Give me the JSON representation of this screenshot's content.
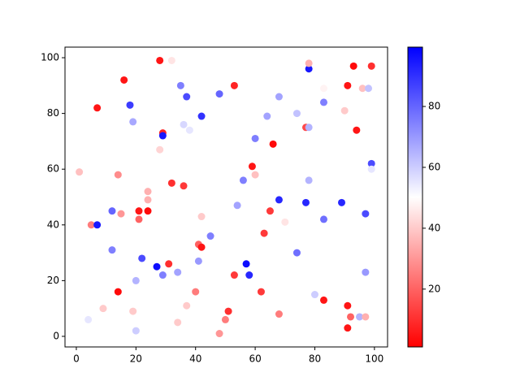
{
  "chart_data": {
    "type": "scatter",
    "colormap": "bwr",
    "x": [
      28,
      32,
      16,
      53,
      78,
      78,
      93,
      99,
      91,
      83,
      96,
      98,
      7,
      18,
      35,
      37,
      48,
      68,
      83,
      42,
      64,
      74,
      90,
      19,
      36,
      38,
      77,
      78,
      94,
      29,
      29,
      60,
      66,
      28,
      1,
      59,
      99,
      99,
      14,
      60,
      56,
      78,
      32,
      36,
      24,
      24,
      68,
      21,
      24,
      12,
      15,
      21,
      54,
      65,
      77,
      89,
      97,
      83,
      42,
      70,
      5,
      7,
      45,
      63,
      41,
      42,
      12,
      74,
      22,
      41,
      31,
      27,
      57,
      34,
      29,
      53,
      58,
      97,
      20,
      40,
      62,
      14,
      80,
      83,
      91,
      37,
      9,
      51,
      19,
      68,
      50,
      92,
      95,
      97,
      4,
      34,
      48,
      20,
      91
    ],
    "y": [
      99,
      99,
      92,
      90,
      96,
      98,
      97,
      97,
      90,
      89,
      89,
      89,
      82,
      83,
      90,
      86,
      87,
      86,
      84,
      79,
      79,
      80,
      81,
      77,
      76,
      74,
      75,
      75,
      74,
      73,
      72,
      71,
      69,
      67,
      59,
      61,
      62,
      60,
      58,
      58,
      56,
      56,
      55,
      54,
      52,
      49,
      49,
      45,
      45,
      45,
      44,
      42,
      47,
      45,
      48,
      48,
      44,
      42,
      43,
      41,
      40,
      40,
      36,
      37,
      33,
      32,
      31,
      30,
      28,
      27,
      26,
      25,
      26,
      23,
      22,
      22,
      22,
      23,
      20,
      16,
      16,
      16,
      15,
      13,
      11,
      11,
      10,
      9,
      9,
      8,
      6,
      7,
      7,
      7,
      6,
      5,
      1,
      2,
      3
    ],
    "c": [
      5,
      45,
      5,
      8,
      95,
      35,
      3,
      10,
      5,
      48,
      38,
      62,
      5,
      88,
      75,
      85,
      80,
      68,
      75,
      90,
      68,
      62,
      40,
      67,
      58,
      55,
      15,
      65,
      5,
      8,
      95,
      75,
      3,
      42,
      38,
      5,
      85,
      55,
      28,
      38,
      75,
      65,
      10,
      12,
      35,
      35,
      92,
      5,
      3,
      80,
      30,
      20,
      68,
      12,
      92,
      92,
      85,
      78,
      40,
      45,
      25,
      95,
      75,
      12,
      20,
      5,
      75,
      78,
      85,
      70,
      10,
      97,
      97,
      68,
      75,
      12,
      92,
      70,
      65,
      25,
      12,
      3,
      60,
      5,
      5,
      40,
      40,
      10,
      40,
      25,
      25,
      20,
      65,
      35,
      55,
      40,
      30,
      60,
      5
    ],
    "clim": [
      1,
      99.5
    ],
    "cticks": [
      20,
      40,
      60,
      80
    ],
    "xlim": [
      -3.8,
      104.4
    ],
    "ylim": [
      -3.8,
      103.8
    ],
    "xticks": [
      0,
      20,
      40,
      60,
      80,
      100
    ],
    "yticks": [
      0,
      20,
      40,
      60,
      80,
      100
    ]
  }
}
